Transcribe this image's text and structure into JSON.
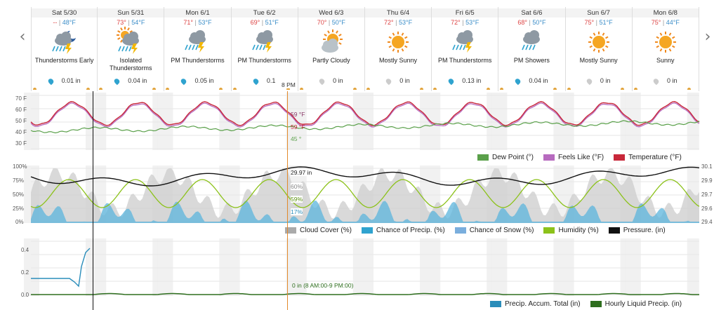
{
  "nav": {
    "prev": "‹",
    "next": "›"
  },
  "cursor_time": "8 PM",
  "days": [
    {
      "name": "Sat 5/30",
      "hi": "--",
      "lo": "48°F",
      "cond": "Thunderstorms Early",
      "icon": "night-thunderstorm-icon",
      "precip": "0.01 in",
      "drop": "blue"
    },
    {
      "name": "Sun 5/31",
      "hi": "73°",
      "lo": "54°F",
      "cond": "Isolated\nThunderstorms",
      "icon": "sun-thunderstorm-icon",
      "precip": "0.04 in",
      "drop": "blue"
    },
    {
      "name": "Mon 6/1",
      "hi": "71°",
      "lo": "53°F",
      "cond": "PM Thunderstorms",
      "icon": "thunderstorm-icon",
      "precip": "0.05 in",
      "drop": "blue"
    },
    {
      "name": "Tue 6/2",
      "hi": "69°",
      "lo": "51°F",
      "cond": "PM Thunderstorms",
      "icon": "thunderstorm-icon",
      "precip": "0.1",
      "drop": "blue"
    },
    {
      "name": "Wed 6/3",
      "hi": "70°",
      "lo": "50°F",
      "cond": "Partly Cloudy",
      "icon": "partly-cloudy-icon",
      "precip": "0 in",
      "drop": "gray"
    },
    {
      "name": "Thu 6/4",
      "hi": "72°",
      "lo": "53°F",
      "cond": "Mostly Sunny",
      "icon": "sunny-icon",
      "precip": "0 in",
      "drop": "gray"
    },
    {
      "name": "Fri 6/5",
      "hi": "72°",
      "lo": "53°F",
      "cond": "PM Thunderstorms",
      "icon": "thunderstorm-icon",
      "precip": "0.13 in",
      "drop": "blue"
    },
    {
      "name": "Sat 6/6",
      "hi": "68°",
      "lo": "50°F",
      "cond": "PM Showers",
      "icon": "showers-icon",
      "precip": "0.04 in",
      "drop": "blue"
    },
    {
      "name": "Sun 6/7",
      "hi": "75°",
      "lo": "51°F",
      "cond": "Mostly Sunny",
      "icon": "sunny-icon",
      "precip": "0 in",
      "drop": "gray"
    },
    {
      "name": "Mon 6/8",
      "hi": "75°",
      "lo": "44°F",
      "cond": "Sunny",
      "icon": "sunny-icon",
      "precip": "0 in",
      "drop": "gray"
    }
  ],
  "temp_panel": {
    "y_ticks": [
      "70 F",
      "60 F",
      "50 F",
      "40 F",
      "30 F"
    ],
    "readouts": {
      "feels": "59 °F",
      "temp": "59 °F",
      "dew": "45 °"
    },
    "legend": [
      {
        "label": "Dew Point (°)",
        "color": "#5aa04a"
      },
      {
        "label": "Feels Like (°F)",
        "color": "#b76bbf"
      },
      {
        "label": "Temperature (°F)",
        "color": "#c8283a"
      }
    ]
  },
  "cloud_panel": {
    "y_ticks_left": [
      "100%",
      "75%",
      "50%",
      "25%",
      "0%"
    ],
    "y_ticks_right": [
      "30.1",
      "29.9",
      "29.7",
      "29.6",
      "29.4"
    ],
    "readouts": {
      "pressure": "29.97 in",
      "cloud": "60%",
      "humidity": "59%",
      "precip": "17%"
    },
    "legend": [
      {
        "label": "Cloud Cover (%)",
        "color": "#aaaaaa"
      },
      {
        "label": "Chance of Precip. (%)",
        "color": "#2fa3cf"
      },
      {
        "label": "Chance of Snow (%)",
        "color": "#7aaedd"
      },
      {
        "label": "Humidity (%)",
        "color": "#8cc21a"
      },
      {
        "label": "Pressure. (in)",
        "color": "#111111"
      }
    ]
  },
  "precip_panel": {
    "y_ticks": [
      "0.4",
      "0.2",
      "0.0"
    ],
    "readout": "0 in (8 AM:00-9 PM:00)",
    "legend": [
      {
        "label": "Precip. Accum. Total (in)",
        "color": "#2a8dba"
      },
      {
        "label": "Hourly Liquid Precip. (in)",
        "color": "#2e6e1e"
      }
    ]
  },
  "colors": {
    "temp": "#c8283a",
    "feels": "#b76bbf",
    "dew": "#5aa04a",
    "cloud": "#aaaaaa",
    "precip": "#5bb4dc",
    "humidity": "#8cc21a",
    "pressure": "#111111",
    "cursor": "#e38a2c"
  }
}
